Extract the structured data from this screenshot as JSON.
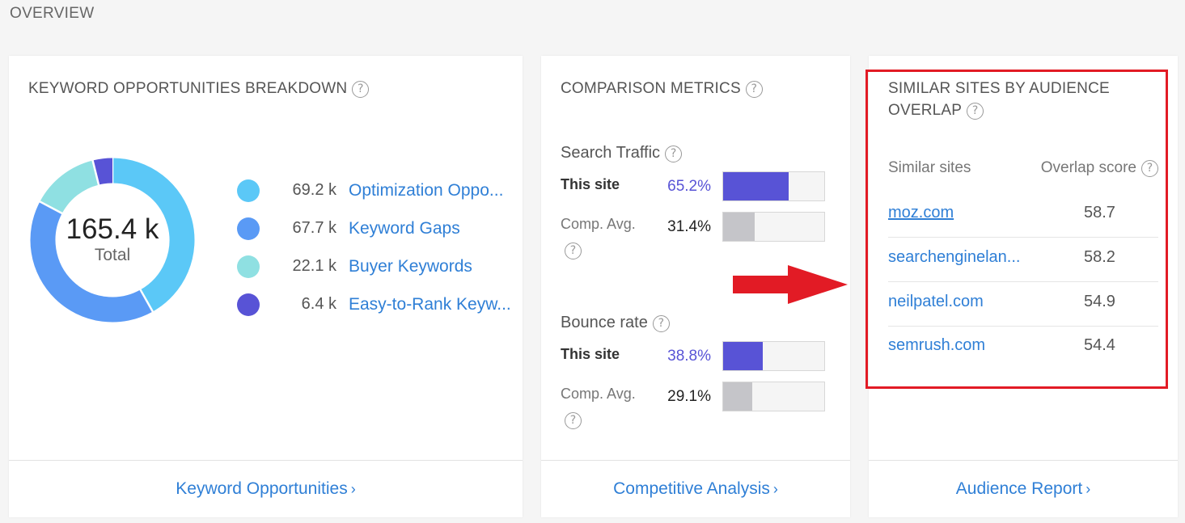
{
  "page": {
    "title": "OVERVIEW"
  },
  "keyword_card": {
    "title": "KEYWORD OPPORTUNITIES BREAKDOWN",
    "help": "?",
    "total_value": "165.4 k",
    "total_label": "Total",
    "items": [
      {
        "value": "69.2 k",
        "label": "Optimization Oppo...",
        "color": "#5bc8f7",
        "amount": 69.2
      },
      {
        "value": "67.7 k",
        "label": "Keyword Gaps",
        "color": "#5a9af5",
        "amount": 67.7
      },
      {
        "value": "22.1 k",
        "label": "Buyer Keywords",
        "color": "#8fe0e2",
        "amount": 22.1
      },
      {
        "value": "6.4 k",
        "label": "Easy-to-Rank Keyw...",
        "color": "#5853d6",
        "amount": 6.4
      }
    ],
    "footer_link": "Keyword Opportunities",
    "footer_chevron": "›"
  },
  "metrics_card": {
    "title": "COMPARISON METRICS",
    "help": "?",
    "metrics": [
      {
        "name": "Search Traffic",
        "site_label": "This site",
        "site_value": "65.2%",
        "site_fraction": 0.652,
        "comp_label": "Comp. Avg.",
        "comp_value": "31.4%",
        "comp_fraction": 0.314
      },
      {
        "name": "Bounce rate",
        "site_label": "This site",
        "site_value": "38.8%",
        "site_fraction": 0.388,
        "comp_label": "Comp. Avg.",
        "comp_value": "29.1%",
        "comp_fraction": 0.291
      }
    ],
    "site_color": "#5853d6",
    "comp_color": "#c5c5c9",
    "footer_link": "Competitive Analysis",
    "footer_chevron": "›"
  },
  "similar_card": {
    "title_line1": "SIMILAR SITES BY AUDIENCE",
    "title_line2": "OVERLAP",
    "help": "?",
    "col_site": "Similar sites",
    "col_score": "Overlap score",
    "rows": [
      {
        "site": "moz.com",
        "score": "58.7"
      },
      {
        "site": "searchenginelan...",
        "score": "58.2"
      },
      {
        "site": "neilpatel.com",
        "score": "54.9"
      },
      {
        "site": "semrush.com",
        "score": "54.4"
      }
    ],
    "footer_link": "Audience Report",
    "footer_chevron": "›",
    "highlight_color": "#e21b25"
  }
}
